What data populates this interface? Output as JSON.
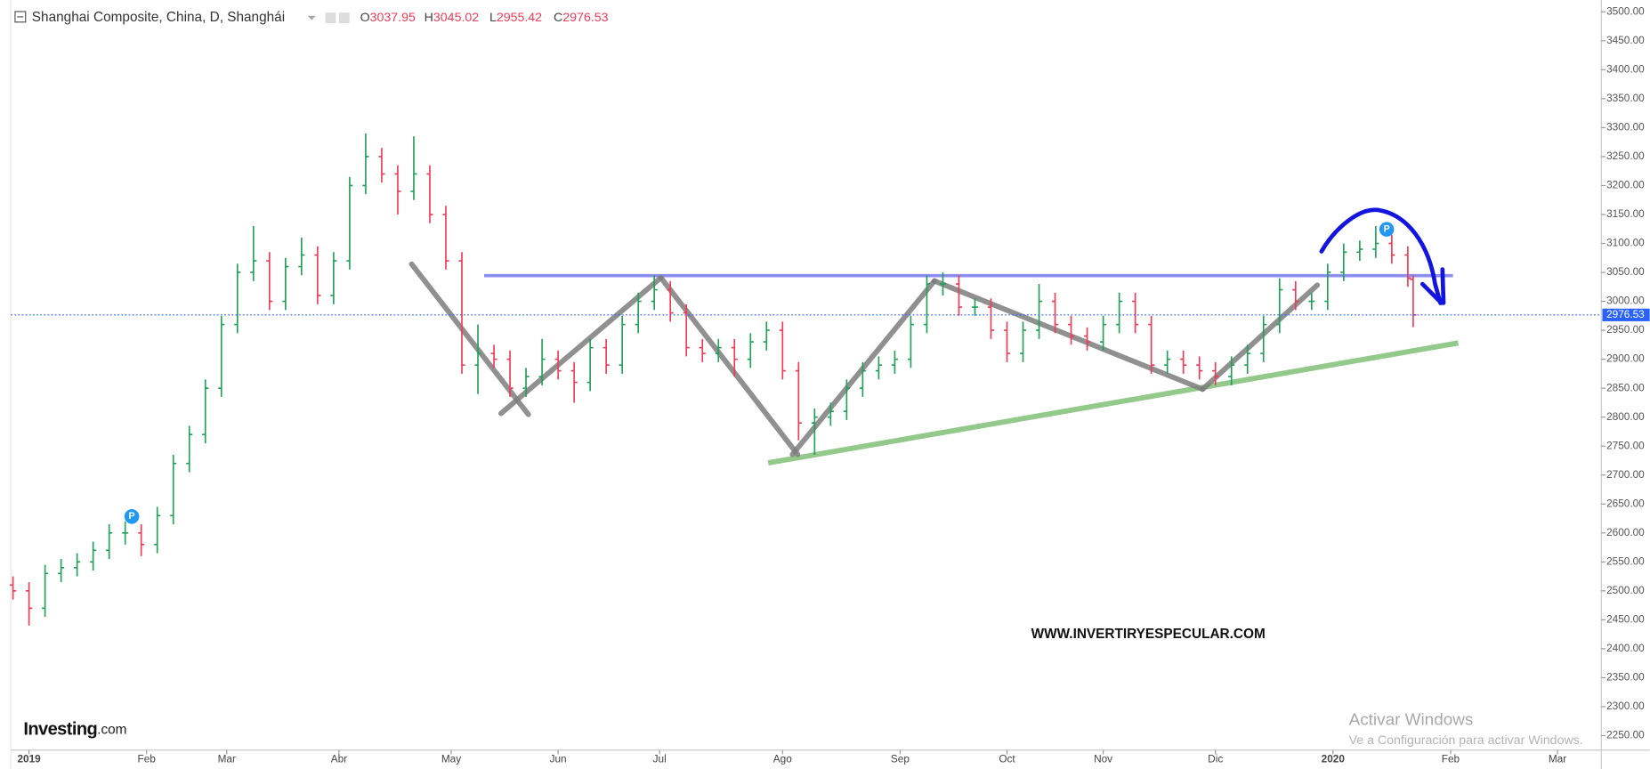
{
  "chart_data": {
    "type": "ohlc",
    "title": "Shanghai Composite, China, D, Shanghái",
    "ohlc_labels": [
      "O",
      "H",
      "L",
      "C"
    ],
    "x": [
      0,
      3,
      6,
      9,
      12,
      15,
      18,
      21,
      24,
      27,
      30,
      33,
      36,
      39,
      42,
      45,
      48,
      51,
      54,
      57,
      60,
      63,
      66,
      69,
      72,
      75,
      78,
      81,
      84,
      87,
      90,
      93,
      96,
      99,
      102,
      105,
      108,
      111,
      114,
      117,
      120,
      123,
      126,
      129,
      132,
      135,
      138,
      141,
      144,
      147,
      150,
      153,
      156,
      159,
      162,
      165,
      168,
      171,
      174,
      177,
      180,
      183,
      186,
      189,
      192,
      195,
      198,
      201,
      204,
      207,
      210,
      213,
      216,
      219,
      222,
      225,
      228,
      231,
      234,
      237,
      240,
      243,
      246,
      249,
      252,
      255,
      258,
      261,
      262
    ],
    "open": [
      2510,
      2500,
      2470,
      2530,
      2540,
      2550,
      2570,
      2600,
      2600,
      2580,
      2630,
      2720,
      2770,
      2850,
      2960,
      3050,
      3070,
      3000,
      3060,
      3080,
      3010,
      3070,
      3200,
      3250,
      3220,
      3190,
      3220,
      3150,
      3070,
      2890,
      2910,
      2900,
      2850,
      2870,
      2900,
      2880,
      2860,
      2920,
      2890,
      2960,
      3000,
      3020,
      2980,
      2920,
      2910,
      2920,
      2900,
      2930,
      2950,
      2880,
      2790,
      2800,
      2810,
      2850,
      2880,
      2890,
      2900,
      2960,
      3030,
      3030,
      2990,
      2990,
      2950,
      2910,
      2950,
      3000,
      2960,
      2940,
      2930,
      2960,
      3000,
      2960,
      2890,
      2900,
      2890,
      2880,
      2870,
      2890,
      2910,
      2960,
      3020,
      3000,
      3000,
      3050,
      3085,
      3090,
      3100,
      3080,
      3037.95
    ],
    "high": [
      2525,
      2515,
      2545,
      2555,
      2565,
      2585,
      2615,
      2620,
      2615,
      2645,
      2735,
      2785,
      2865,
      2975,
      3065,
      3130,
      3085,
      3075,
      3110,
      3095,
      3085,
      3215,
      3290,
      3265,
      3235,
      3285,
      3235,
      3165,
      3085,
      2960,
      2925,
      2915,
      2885,
      2935,
      2915,
      2895,
      2935,
      2935,
      2975,
      3015,
      3045,
      3035,
      2995,
      2935,
      2935,
      2935,
      2945,
      2965,
      2965,
      2895,
      2815,
      2825,
      2865,
      2895,
      2905,
      2915,
      2975,
      3045,
      3050,
      3045,
      3005,
      3005,
      2965,
      2965,
      3030,
      3015,
      2975,
      2955,
      2975,
      3015,
      3015,
      2975,
      2915,
      2915,
      2905,
      2895,
      2905,
      2925,
      2975,
      3040,
      3035,
      3015,
      3065,
      3100,
      3105,
      3130,
      3115,
      3095,
      3045.02
    ],
    "low": [
      2485,
      2440,
      2455,
      2515,
      2525,
      2535,
      2555,
      2580,
      2560,
      2565,
      2615,
      2705,
      2755,
      2835,
      2945,
      3035,
      2985,
      2985,
      3045,
      2995,
      2995,
      3055,
      3185,
      3205,
      3150,
      3175,
      3135,
      3055,
      2875,
      2840,
      2885,
      2835,
      2835,
      2855,
      2865,
      2825,
      2845,
      2875,
      2875,
      2945,
      2985,
      2965,
      2905,
      2895,
      2895,
      2870,
      2885,
      2915,
      2865,
      2760,
      2735,
      2785,
      2795,
      2835,
      2865,
      2875,
      2885,
      2945,
      3010,
      2975,
      2975,
      2935,
      2895,
      2895,
      2935,
      2945,
      2925,
      2915,
      2915,
      2945,
      2945,
      2875,
      2875,
      2875,
      2865,
      2855,
      2855,
      2875,
      2895,
      2945,
      2985,
      2985,
      2985,
      3035,
      3070,
      3075,
      3065,
      3025,
      2955.42
    ],
    "close": [
      2500,
      2470,
      2530,
      2540,
      2550,
      2570,
      2600,
      2600,
      2580,
      2630,
      2720,
      2770,
      2850,
      2960,
      3050,
      3070,
      3000,
      3060,
      3080,
      3010,
      3070,
      3200,
      3250,
      3220,
      3190,
      3220,
      3150,
      3070,
      2890,
      2910,
      2900,
      2850,
      2870,
      2900,
      2880,
      2860,
      2920,
      2890,
      2960,
      3000,
      3020,
      2980,
      2920,
      2910,
      2920,
      2900,
      2930,
      2950,
      2880,
      2790,
      2800,
      2810,
      2850,
      2880,
      2890,
      2900,
      2960,
      3030,
      3030,
      2990,
      2990,
      2950,
      2910,
      2950,
      3000,
      2960,
      2940,
      2930,
      2960,
      3000,
      2960,
      2890,
      2900,
      2890,
      2880,
      2870,
      2890,
      2910,
      2960,
      3020,
      3000,
      3000,
      3050,
      3085,
      3090,
      3100,
      3080,
      3040,
      2976.53
    ],
    "up_color": "#22a05a",
    "down_color": "#ee3b57",
    "price_line_color": "#2962ff",
    "xlim": [
      -0.4,
      297.2
    ],
    "xticks": [
      {
        "value": 3,
        "label": "2019"
      },
      {
        "value": 25,
        "label": "Feb"
      },
      {
        "value": 40,
        "label": "Mar"
      },
      {
        "value": 61,
        "label": "Abr"
      },
      {
        "value": 82,
        "label": "May"
      },
      {
        "value": 102,
        "label": "Jun"
      },
      {
        "value": 121,
        "label": "Jul"
      },
      {
        "value": 144,
        "label": "Ago"
      },
      {
        "value": 166,
        "label": "Sep"
      },
      {
        "value": 186,
        "label": "Oct"
      },
      {
        "value": 204,
        "label": "Nov"
      },
      {
        "value": 225,
        "label": "Dic"
      },
      {
        "value": 247,
        "label": "2020"
      },
      {
        "value": 269,
        "label": "Feb"
      },
      {
        "value": 289,
        "label": "Mar"
      }
    ],
    "ylim": [
      2225,
      3515
    ],
    "yticks": [
      {
        "value": 2250,
        "label": "2250.00"
      },
      {
        "value": 2300,
        "label": "2300.00"
      },
      {
        "value": 2350,
        "label": "2350.00"
      },
      {
        "value": 2400,
        "label": "2400.00"
      },
      {
        "value": 2450,
        "label": "2450.00"
      },
      {
        "value": 2500,
        "label": "2500.00"
      },
      {
        "value": 2550,
        "label": "2550.00"
      },
      {
        "value": 2600,
        "label": "2600.00"
      },
      {
        "value": 2650,
        "label": "2650.00"
      },
      {
        "value": 2700,
        "label": "2700.00"
      },
      {
        "value": 2750,
        "label": "2750.00"
      },
      {
        "value": 2800,
        "label": "2800.00"
      },
      {
        "value": 2850,
        "label": "2850.00"
      },
      {
        "value": 2900,
        "label": "2900.00"
      },
      {
        "value": 2950,
        "label": "2950.00"
      },
      {
        "value": 3000,
        "label": "3000.00"
      },
      {
        "value": 3050,
        "label": "3050.00"
      },
      {
        "value": 3100,
        "label": "3100.00"
      },
      {
        "value": 3150,
        "label": "3150.00"
      },
      {
        "value": 3200,
        "label": "3200.00"
      },
      {
        "value": 3250,
        "label": "3250.00"
      },
      {
        "value": 3300,
        "label": "3300.00"
      },
      {
        "value": 3350,
        "label": "3350.00"
      },
      {
        "value": 3400,
        "label": "3400.00"
      },
      {
        "value": 3450,
        "label": "3450.00"
      },
      {
        "value": 3500,
        "label": "3500.00"
      }
    ],
    "grid": false
  },
  "annotations": {
    "website": "WWW.INVERTIRYESPECULAR.COM",
    "logo_main": "Investing",
    "logo_suffix": ".com",
    "pivot_marker": "P",
    "windows_title": "Activar Windows",
    "windows_hint": "Ve a Configuración para activar Windows."
  }
}
